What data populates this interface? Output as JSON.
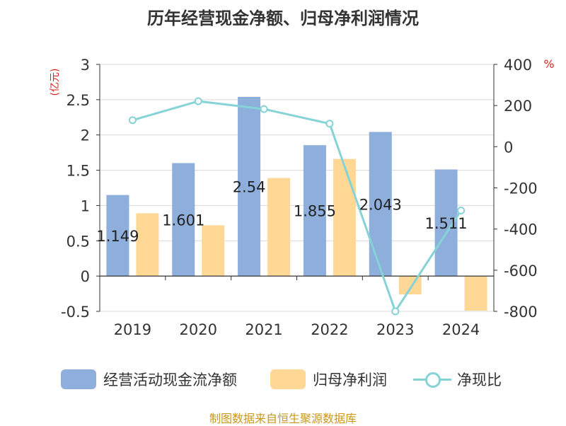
{
  "chart_data": {
    "type": "bar",
    "title": "历年经营现金净额、归母净利润情况",
    "left_axis_unit": "(亿元)",
    "right_axis_unit": "%",
    "categories": [
      "2019",
      "2020",
      "2021",
      "2022",
      "2023",
      "2024"
    ],
    "left_ylim": [
      -0.5,
      3
    ],
    "left_ticks": [
      "3",
      "2.5",
      "2",
      "1.5",
      "1",
      "0.5",
      "0",
      "-0.5"
    ],
    "right_ylim": [
      -800,
      400
    ],
    "right_ticks": [
      "400",
      "200",
      "0",
      "-200",
      "-400",
      "-600",
      "-800"
    ],
    "grid": true,
    "legend_position": "bottom",
    "series": [
      {
        "name": "经营活动现金流净额",
        "type": "bar",
        "axis": "left",
        "color": "#8eaedb",
        "values": [
          1.149,
          1.601,
          2.54,
          1.855,
          2.043,
          1.511
        ],
        "labels": [
          "1.149",
          "1.601",
          "2.54",
          "1.855",
          "2.043",
          "1.511"
        ]
      },
      {
        "name": "归母净利润",
        "type": "bar",
        "axis": "left",
        "color": "#ffd896",
        "values": [
          0.89,
          0.72,
          1.39,
          1.66,
          -0.26,
          -0.49
        ]
      },
      {
        "name": "净现比",
        "type": "line",
        "axis": "right",
        "color": "#85d3d6",
        "values": [
          129,
          221,
          183,
          112,
          -800,
          -310
        ]
      }
    ]
  },
  "source_text": "制图数据来自恒生聚源数据库"
}
